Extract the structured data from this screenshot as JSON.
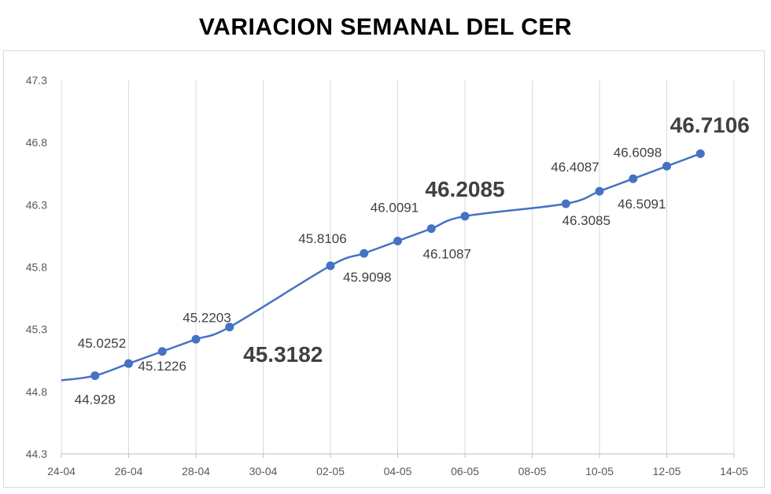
{
  "chart_data": {
    "type": "line",
    "title": "VARIACION SEMANAL DEL CER",
    "xlabel": "",
    "ylabel": "",
    "x_ticks": [
      "24-04",
      "26-04",
      "28-04",
      "30-04",
      "02-05",
      "04-05",
      "06-05",
      "08-05",
      "10-05",
      "12-05",
      "14-05"
    ],
    "y_ticks": [
      "44.3",
      "44.8",
      "45.3",
      "45.8",
      "46.3",
      "46.8",
      "47.3"
    ],
    "ylim": [
      44.3,
      47.3
    ],
    "xlim": [
      "24-04",
      "14-05"
    ],
    "grid": "vertical",
    "legend": "none",
    "series": [
      {
        "color": "#4472c4",
        "points": [
          {
            "x": "24-04",
            "y": 44.89
          },
          {
            "x": "25-04",
            "y": 44.928,
            "label": "44.928"
          },
          {
            "x": "26-04",
            "y": 45.0252,
            "label": "45.0252"
          },
          {
            "x": "27-04",
            "y": 45.1226,
            "label": "45.1226"
          },
          {
            "x": "28-04",
            "y": 45.2203,
            "label": "45.2203"
          },
          {
            "x": "29-04",
            "y": 45.3182,
            "label": "45.3182",
            "emphasis": true
          },
          {
            "x": "02-05",
            "y": 45.8106,
            "label": "45.8106"
          },
          {
            "x": "03-05",
            "y": 45.9098,
            "label": "45.9098"
          },
          {
            "x": "04-05",
            "y": 46.0091,
            "label": "46.0091"
          },
          {
            "x": "05-05",
            "y": 46.1087,
            "label": "46.1087"
          },
          {
            "x": "06-05",
            "y": 46.2085,
            "label": "46.2085",
            "emphasis": true
          },
          {
            "x": "09-05",
            "y": 46.3085,
            "label": "46.3085"
          },
          {
            "x": "10-05",
            "y": 46.4087,
            "label": "46.4087"
          },
          {
            "x": "11-05",
            "y": 46.5091,
            "label": "46.5091"
          },
          {
            "x": "12-05",
            "y": 46.6098,
            "label": "46.6098"
          },
          {
            "x": "13-05",
            "y": 46.7106,
            "label": "46.7106",
            "emphasis": true
          }
        ]
      }
    ]
  }
}
